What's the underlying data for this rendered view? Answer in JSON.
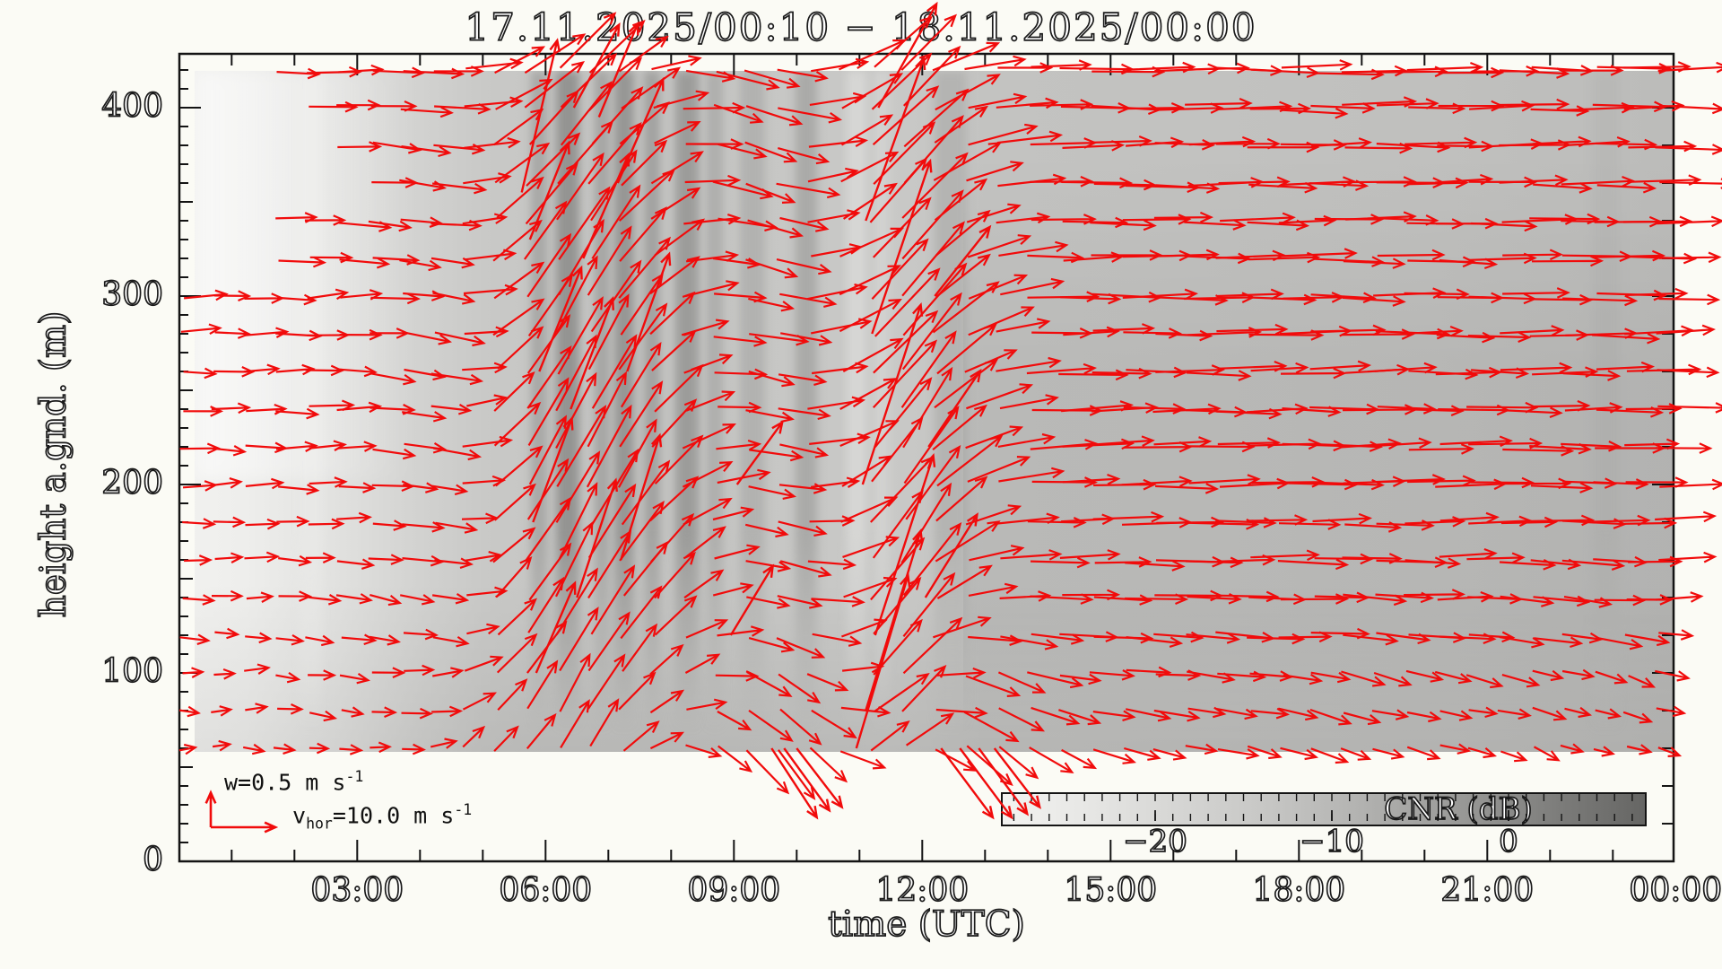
{
  "colors": {
    "arrow": "#f10b0b",
    "axis": "#141414",
    "page_bg": "#fbfbf5",
    "field_light": "#f2f2f0",
    "field_dark_streak": "#949492"
  },
  "chart_data": {
    "type": "quiver_heatmap",
    "title": "17.11.2025/00:10 − 18.11.2025/00:00",
    "xlabel": "time (UTC)",
    "ylabel": "height a.gnd. (m)",
    "x_ticks": {
      "labels": [
        "03:00",
        "06:00",
        "09:00",
        "12:00",
        "15:00",
        "18:00",
        "21:00",
        "00:00"
      ],
      "hours": [
        3,
        6,
        9,
        12,
        15,
        18,
        21,
        24
      ],
      "minor_every_h": 1,
      "range_h": [
        0.167,
        24
      ]
    },
    "y_ticks": {
      "labels": [
        "0",
        "100",
        "200",
        "300",
        "400"
      ],
      "meters": [
        0,
        100,
        200,
        300,
        400
      ],
      "minor_every_m": 10,
      "range_m": [
        0,
        429
      ]
    },
    "grid": false,
    "colorbar": {
      "label": "CNR (dB)",
      "tick_labels": [
        "−20",
        "−10",
        "0"
      ],
      "tick_values": [
        -20,
        -10,
        0
      ],
      "value_range_db": [
        -28.7,
        7.6
      ],
      "minor_tick_every_db": 1
    },
    "vector_legend": {
      "w_pre": "w=0.5 m s",
      "w_sup": "-1",
      "w_value_ms": 0.5,
      "v_pre": "v",
      "v_sub": "hor",
      "v_mid": "=10.0 m s",
      "v_sup": "-1",
      "v_value_ms": 10.0
    },
    "wind_field": {
      "comment": "u,w in m/s estimated from arrow geometry; columns hourly, knots are heights (m)",
      "height_knots_m": [
        60,
        100,
        140,
        200,
        280,
        350,
        420
      ],
      "arrow_time_step_h": 0.5,
      "arrow_first_t_h": 0.208,
      "arrow_row_step_m": 20,
      "start_t_by_height": {
        "320": 1.55,
        "340": 1.25,
        "360": 2.9,
        "380": 2.4,
        "400": 1.9,
        "420": 1.45,
        "default": 0.2
      },
      "columns": [
        {
          "t": 0.5,
          "u": [
            2.5,
            3.5,
            4.5,
            5.0,
            6.0,
            6.5,
            7.0
          ],
          "w": [
            0,
            0,
            0,
            0,
            0,
            0,
            0
          ]
        },
        {
          "t": 1.5,
          "u": [
            3.0,
            4.0,
            4.5,
            5.5,
            6.0,
            6.5,
            7.5
          ],
          "w": [
            0,
            0,
            0,
            0,
            0,
            0,
            0
          ]
        },
        {
          "t": 2.5,
          "u": [
            3.0,
            4.0,
            5.0,
            5.5,
            6.5,
            7.0,
            7.5
          ],
          "w": [
            -0.05,
            -0.05,
            0,
            0,
            0.05,
            0,
            0
          ]
        },
        {
          "t": 3.5,
          "u": [
            3.5,
            4.5,
            5.0,
            6.0,
            6.5,
            7.0,
            8.0
          ],
          "w": [
            0,
            0,
            -0.1,
            -0.1,
            -0.1,
            -0.1,
            -0.05
          ]
        },
        {
          "t": 4.5,
          "u": [
            3.5,
            5.0,
            5.5,
            6.5,
            7.0,
            7.5,
            8.0
          ],
          "w": [
            0.15,
            0.05,
            -0.1,
            -0.15,
            -0.1,
            -0.05,
            0
          ]
        },
        {
          "t": 5.5,
          "u": [
            4.5,
            5.5,
            6.0,
            6.5,
            7.0,
            7.5,
            8.0
          ],
          "w": [
            0.5,
            0.7,
            0.8,
            0.85,
            0.8,
            0.75,
            0.55
          ]
        },
        {
          "t": 6.5,
          "u": [
            5.0,
            5.5,
            6.0,
            6.5,
            7.0,
            7.5,
            8.0
          ],
          "w": [
            0.7,
            0.95,
            1.1,
            1.2,
            1.15,
            1.05,
            0.8
          ]
        },
        {
          "t": 7.5,
          "u": [
            4.5,
            5.5,
            6.0,
            6.5,
            7.0,
            7.5,
            8.0
          ],
          "w": [
            0.35,
            0.55,
            0.7,
            0.8,
            0.75,
            0.6,
            0.3
          ]
        },
        {
          "t": 8.5,
          "u": [
            5.0,
            6.0,
            6.5,
            7.0,
            7.5,
            8.0,
            8.5
          ],
          "w": [
            -0.3,
            0.1,
            0.25,
            0.2,
            0,
            -0.15,
            -0.2
          ]
        },
        {
          "t": 9.5,
          "u": [
            6.0,
            6.5,
            7.0,
            7.5,
            8.0,
            8.5,
            8.5
          ],
          "w": [
            -0.75,
            -0.45,
            -0.25,
            -0.2,
            -0.2,
            -0.25,
            -0.3
          ]
        },
        {
          "t": 10.5,
          "u": [
            6.0,
            7.0,
            7.5,
            8.0,
            8.5,
            8.5,
            9.0
          ],
          "w": [
            -0.45,
            -0.15,
            0,
            0.15,
            0.25,
            0.3,
            0.3
          ]
        },
        {
          "t": 11.5,
          "u": [
            7.0,
            8.0,
            8.5,
            8.5,
            9.0,
            9.0,
            9.0
          ],
          "w": [
            0.7,
            1.1,
            1.3,
            1.3,
            1.2,
            1.1,
            0.9
          ]
        },
        {
          "t": 12.5,
          "u": [
            7.0,
            8.0,
            8.5,
            9.0,
            9.0,
            9.0,
            9.5
          ],
          "w": [
            -0.65,
            -0.35,
            0.2,
            0.4,
            0.45,
            0.35,
            0.2
          ]
        },
        {
          "t": 13.5,
          "u": [
            6.0,
            7.5,
            8.5,
            9.0,
            9.5,
            9.5,
            9.5
          ],
          "w": [
            -0.4,
            -0.2,
            -0.05,
            0.05,
            0.05,
            0,
            0
          ]
        },
        {
          "t": 14.5,
          "u": [
            6.0,
            7.0,
            9.0,
            9.5,
            10,
            10,
            10
          ],
          "w": [
            -0.15,
            -0.1,
            0,
            0.05,
            0,
            0,
            0
          ]
        },
        {
          "t": 15.5,
          "u": [
            5.5,
            7.0,
            9.5,
            10,
            10,
            10,
            10
          ],
          "w": [
            -0.1,
            -0.05,
            0,
            0,
            0,
            0,
            0
          ]
        },
        {
          "t": 16.5,
          "u": [
            5.5,
            6.5,
            9.5,
            10,
            10,
            10,
            10
          ],
          "w": [
            -0.1,
            -0.1,
            0,
            0,
            0,
            0,
            0
          ]
        },
        {
          "t": 17.5,
          "u": [
            5.0,
            6.5,
            9.5,
            10,
            10,
            10,
            10
          ],
          "w": [
            -0.15,
            -0.05,
            0,
            0,
            0,
            0,
            0
          ]
        },
        {
          "t": 18.5,
          "u": [
            5.0,
            6.0,
            9.5,
            10,
            10,
            10,
            10
          ],
          "w": [
            -0.2,
            -0.15,
            -0.05,
            0,
            0,
            0,
            0
          ]
        },
        {
          "t": 19.5,
          "u": [
            4.5,
            6.0,
            9.5,
            10,
            10,
            10,
            10
          ],
          "w": [
            -0.15,
            -0.1,
            0,
            0,
            0,
            0,
            0
          ]
        },
        {
          "t": 20.5,
          "u": [
            4.5,
            5.5,
            9.0,
            10,
            10,
            10,
            10
          ],
          "w": [
            -0.1,
            -0.1,
            0,
            0,
            0,
            0,
            0
          ]
        },
        {
          "t": 21.5,
          "u": [
            4.0,
            5.0,
            8.5,
            9.5,
            10,
            10,
            10
          ],
          "w": [
            -0.15,
            -0.1,
            -0.05,
            0,
            0,
            0,
            0
          ]
        },
        {
          "t": 22.5,
          "u": [
            3.5,
            4.5,
            8.0,
            9.5,
            10,
            10,
            10
          ],
          "w": [
            -0.1,
            -0.15,
            -0.05,
            0,
            0,
            0,
            0
          ]
        },
        {
          "t": 23.5,
          "u": [
            3.5,
            4.5,
            7.5,
            9.5,
            10,
            10,
            10
          ],
          "w": [
            -0.1,
            -0.1,
            0,
            0,
            0,
            0,
            0
          ]
        }
      ],
      "bursts": [
        [
          5.62,
          355,
          5.5,
          2.2
        ],
        [
          5.8,
          180,
          6,
          1.5
        ],
        [
          5.85,
          100,
          6,
          1.3
        ],
        [
          5.9,
          260,
          6.5,
          1.5
        ],
        [
          5.75,
          330,
          6,
          1.4
        ],
        [
          6.45,
          400,
          7,
          1.2
        ],
        [
          6.5,
          140,
          6,
          1.7
        ],
        [
          6.4,
          240,
          6.5,
          1.6
        ],
        [
          6.6,
          320,
          7,
          1.5
        ],
        [
          6.85,
          395,
          6,
          1.35
        ],
        [
          7.15,
          360,
          7,
          1.5
        ],
        [
          7.2,
          160,
          6,
          1.8
        ],
        [
          7.3,
          260,
          6.5,
          1.7
        ],
        [
          8.95,
          120,
          6.5,
          1.0
        ],
        [
          9.05,
          200,
          7,
          0.9
        ],
        [
          10.95,
          60,
          8,
          2.5
        ],
        [
          11.1,
          80,
          8.5,
          2.6
        ],
        [
          11.25,
          120,
          9,
          2.6
        ],
        [
          11.05,
          200,
          9,
          2.6
        ],
        [
          11.2,
          280,
          9,
          2.5
        ],
        [
          11.1,
          340,
          9,
          2.35
        ],
        [
          11.3,
          400,
          9,
          1.5
        ],
        [
          12.1,
          220,
          8,
          1.1
        ],
        [
          12.2,
          300,
          8.5,
          1.0
        ],
        [
          12.05,
          140,
          8,
          1.2
        ],
        [
          9.6,
          60,
          7,
          -1.0
        ],
        [
          9.8,
          60,
          7,
          -0.9
        ],
        [
          10.0,
          60,
          7,
          -0.85
        ],
        [
          12.3,
          60,
          8,
          -1.0
        ],
        [
          12.6,
          60,
          8,
          -1.0
        ],
        [
          12.9,
          60,
          7.5,
          -0.95
        ],
        [
          13.15,
          60,
          7,
          -0.85
        ]
      ]
    },
    "cnr_field": {
      "comment": "background CNR shading vs time; hex = gray at mid heights",
      "extent_h": [
        0.42,
        24
      ],
      "extent_m": [
        57,
        420
      ],
      "base_stops": [
        [
          0.0,
          "#f2f2f0"
        ],
        [
          1.2,
          "#eeeeec"
        ],
        [
          2.6,
          "#e2e2e0"
        ],
        [
          4.0,
          "#d2d2d0"
        ],
        [
          5.0,
          "#c9c9c7"
        ],
        [
          6.0,
          "#c6c6c4"
        ],
        [
          8.0,
          "#c5c5c3"
        ],
        [
          10.0,
          "#c7c7c5"
        ],
        [
          11.5,
          "#c9c9c7"
        ],
        [
          13.0,
          "#c3c3c1"
        ],
        [
          16.0,
          "#c2c2c0"
        ],
        [
          20.0,
          "#c0c0be"
        ],
        [
          24.0,
          "#bcbcba"
        ]
      ],
      "streaks": [
        [
          2.25,
          26,
          "#e8e8e6"
        ],
        [
          5.9,
          18,
          "#a8a8a6"
        ],
        [
          6.35,
          26,
          "#949492"
        ],
        [
          6.9,
          16,
          "#a4a4a2"
        ],
        [
          7.25,
          22,
          "#969694"
        ],
        [
          7.7,
          18,
          "#a2a2a0"
        ],
        [
          8.25,
          26,
          "#9c9c9a"
        ],
        [
          8.7,
          18,
          "#aeaeac"
        ],
        [
          9.3,
          28,
          "#b2b2b0"
        ],
        [
          10.15,
          24,
          "#aaaaa8"
        ],
        [
          10.95,
          22,
          "#d6d6d4"
        ],
        [
          11.35,
          16,
          "#d2d2d0"
        ],
        [
          12.45,
          36,
          "#b4b4b2"
        ],
        [
          22.9,
          30,
          "#b8b8b6"
        ]
      ]
    }
  }
}
